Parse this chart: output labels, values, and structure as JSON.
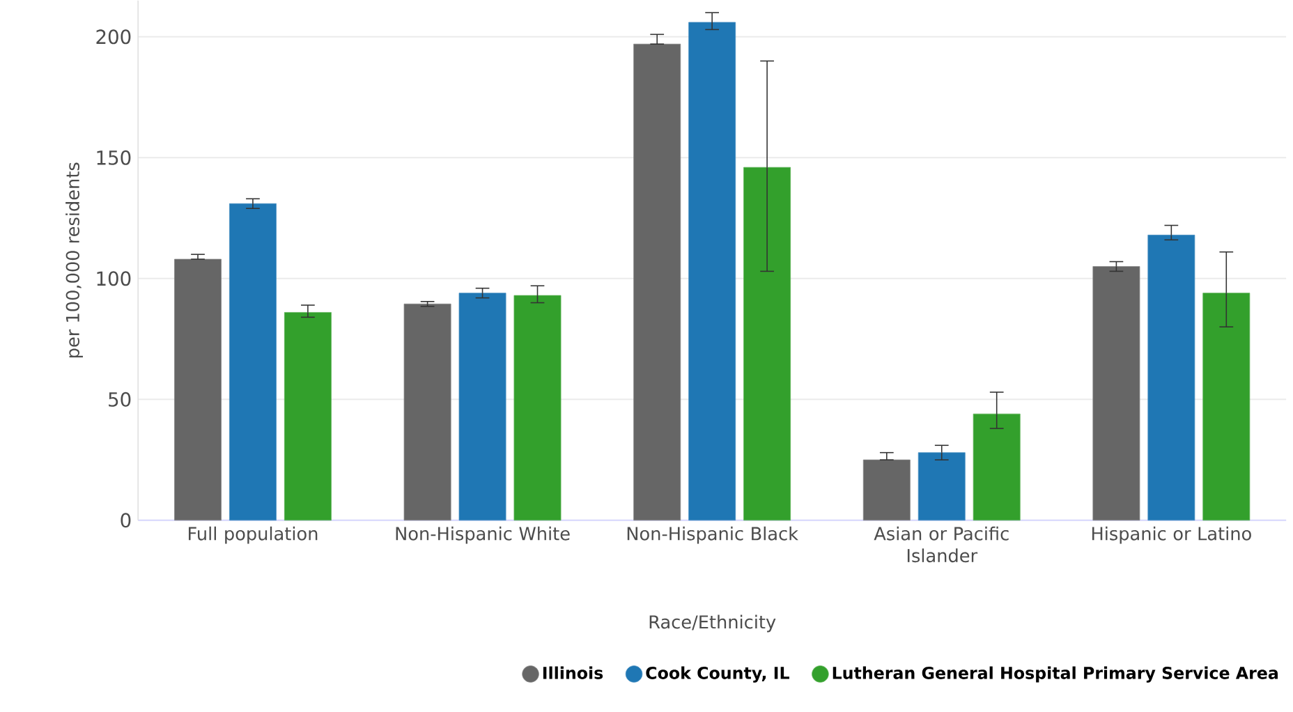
{
  "chart_data": {
    "type": "bar",
    "xlabel": "Race/Ethnicity",
    "ylabel": "per 100,000 residents",
    "categories": [
      "Full population",
      "Non-Hispanic White",
      "Non-Hispanic Black",
      "Asian or Pacific Islander",
      "Hispanic or Latino"
    ],
    "series": [
      {
        "name": "Illinois",
        "color": "#666666",
        "values": [
          108,
          89.5,
          197,
          25,
          105
        ],
        "errors": [
          [
            108,
            110
          ],
          [
            88.5,
            90.5
          ],
          [
            197,
            201
          ],
          [
            25,
            28
          ],
          [
            103,
            107
          ]
        ]
      },
      {
        "name": "Cook County, IL",
        "color": "#1f77b4",
        "values": [
          131,
          94,
          206,
          28,
          118
        ],
        "errors": [
          [
            129,
            133
          ],
          [
            92,
            96
          ],
          [
            203,
            210
          ],
          [
            25,
            31
          ],
          [
            116,
            122
          ]
        ]
      },
      {
        "name": "Lutheran General Hospital Primary Service Area",
        "color": "#33a02c",
        "values": [
          86,
          93,
          146,
          44,
          94
        ],
        "errors": [
          [
            84,
            89
          ],
          [
            90,
            97
          ],
          [
            103,
            190
          ],
          [
            38,
            53
          ],
          [
            80,
            111
          ]
        ]
      }
    ],
    "ylim": [
      0,
      215
    ],
    "yticks": [
      0,
      50,
      100,
      150,
      200
    ],
    "grid": "y",
    "legend": "bottom"
  }
}
